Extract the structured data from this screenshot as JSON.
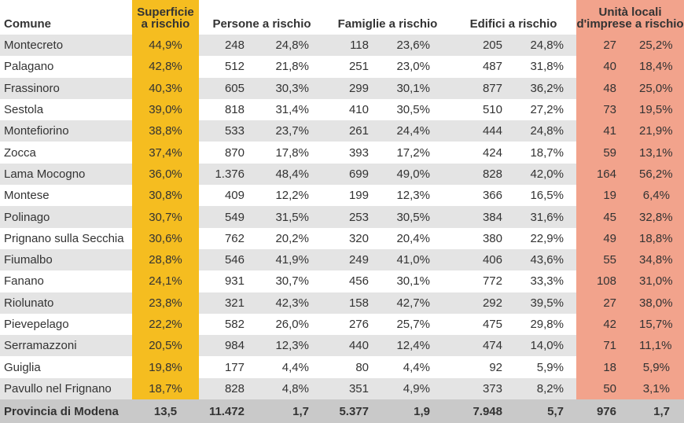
{
  "headers": {
    "comune": "Comune",
    "superficie_line1": "Superficie",
    "superficie_line2": "a rischio",
    "persone": "Persone a rischio",
    "famiglie": "Famiglie a rischio",
    "edifici": "Edifici a rischio",
    "imprese_line1": "Unità locali",
    "imprese_line2": "d'imprese a rischio"
  },
  "rows": [
    [
      "Montecreto",
      "44,9%",
      "248",
      "24,8%",
      "118",
      "23,6%",
      "205",
      "24,8%",
      "27",
      "25,2%"
    ],
    [
      "Palagano",
      "42,8%",
      "512",
      "21,8%",
      "251",
      "23,0%",
      "487",
      "31,8%",
      "40",
      "18,4%"
    ],
    [
      "Frassinoro",
      "40,3%",
      "605",
      "30,3%",
      "299",
      "30,1%",
      "877",
      "36,2%",
      "48",
      "25,0%"
    ],
    [
      "Sestola",
      "39,0%",
      "818",
      "31,4%",
      "410",
      "30,5%",
      "510",
      "27,2%",
      "73",
      "19,5%"
    ],
    [
      "Montefiorino",
      "38,8%",
      "533",
      "23,7%",
      "261",
      "24,4%",
      "444",
      "24,8%",
      "41",
      "21,9%"
    ],
    [
      "Zocca",
      "37,4%",
      "870",
      "17,8%",
      "393",
      "17,2%",
      "424",
      "18,7%",
      "59",
      "13,1%"
    ],
    [
      "Lama Mocogno",
      "36,0%",
      "1.376",
      "48,4%",
      "699",
      "49,0%",
      "828",
      "42,0%",
      "164",
      "56,2%"
    ],
    [
      "Montese",
      "30,8%",
      "409",
      "12,2%",
      "199",
      "12,3%",
      "366",
      "16,5%",
      "19",
      "6,4%"
    ],
    [
      "Polinago",
      "30,7%",
      "549",
      "31,5%",
      "253",
      "30,5%",
      "384",
      "31,6%",
      "45",
      "32,8%"
    ],
    [
      "Prignano sulla Secchia",
      "30,6%",
      "762",
      "20,2%",
      "320",
      "20,4%",
      "380",
      "22,9%",
      "49",
      "18,8%"
    ],
    [
      "Fiumalbo",
      "28,8%",
      "546",
      "41,9%",
      "249",
      "41,0%",
      "406",
      "43,6%",
      "55",
      "34,8%"
    ],
    [
      "Fanano",
      "24,1%",
      "931",
      "30,7%",
      "456",
      "30,1%",
      "772",
      "33,3%",
      "108",
      "31,0%"
    ],
    [
      "Riolunato",
      "23,8%",
      "321",
      "42,3%",
      "158",
      "42,7%",
      "292",
      "39,5%",
      "27",
      "38,0%"
    ],
    [
      "Pievepelago",
      "22,2%",
      "582",
      "26,0%",
      "276",
      "25,7%",
      "475",
      "29,8%",
      "42",
      "15,7%"
    ],
    [
      "Serramazzoni",
      "20,5%",
      "984",
      "12,3%",
      "440",
      "12,4%",
      "474",
      "14,0%",
      "71",
      "11,1%"
    ],
    [
      "Guiglia",
      "19,8%",
      "177",
      "4,4%",
      "80",
      "4,4%",
      "92",
      "5,9%",
      "18",
      "5,9%"
    ],
    [
      "Pavullo nel Frignano",
      "18,7%",
      "828",
      "4,8%",
      "351",
      "4,9%",
      "373",
      "8,2%",
      "50",
      "3,1%"
    ]
  ],
  "total": [
    "Provincia di Modena",
    "13,5",
    "11.472",
    "1,7",
    "5.377",
    "1,9",
    "7.948",
    "5,7",
    "976",
    "1,7"
  ],
  "colors": {
    "superficie": "#f5bd20",
    "imprese": "#f2a38c",
    "stripe": "#e4e4e4",
    "footer": "#c9c9c9"
  }
}
